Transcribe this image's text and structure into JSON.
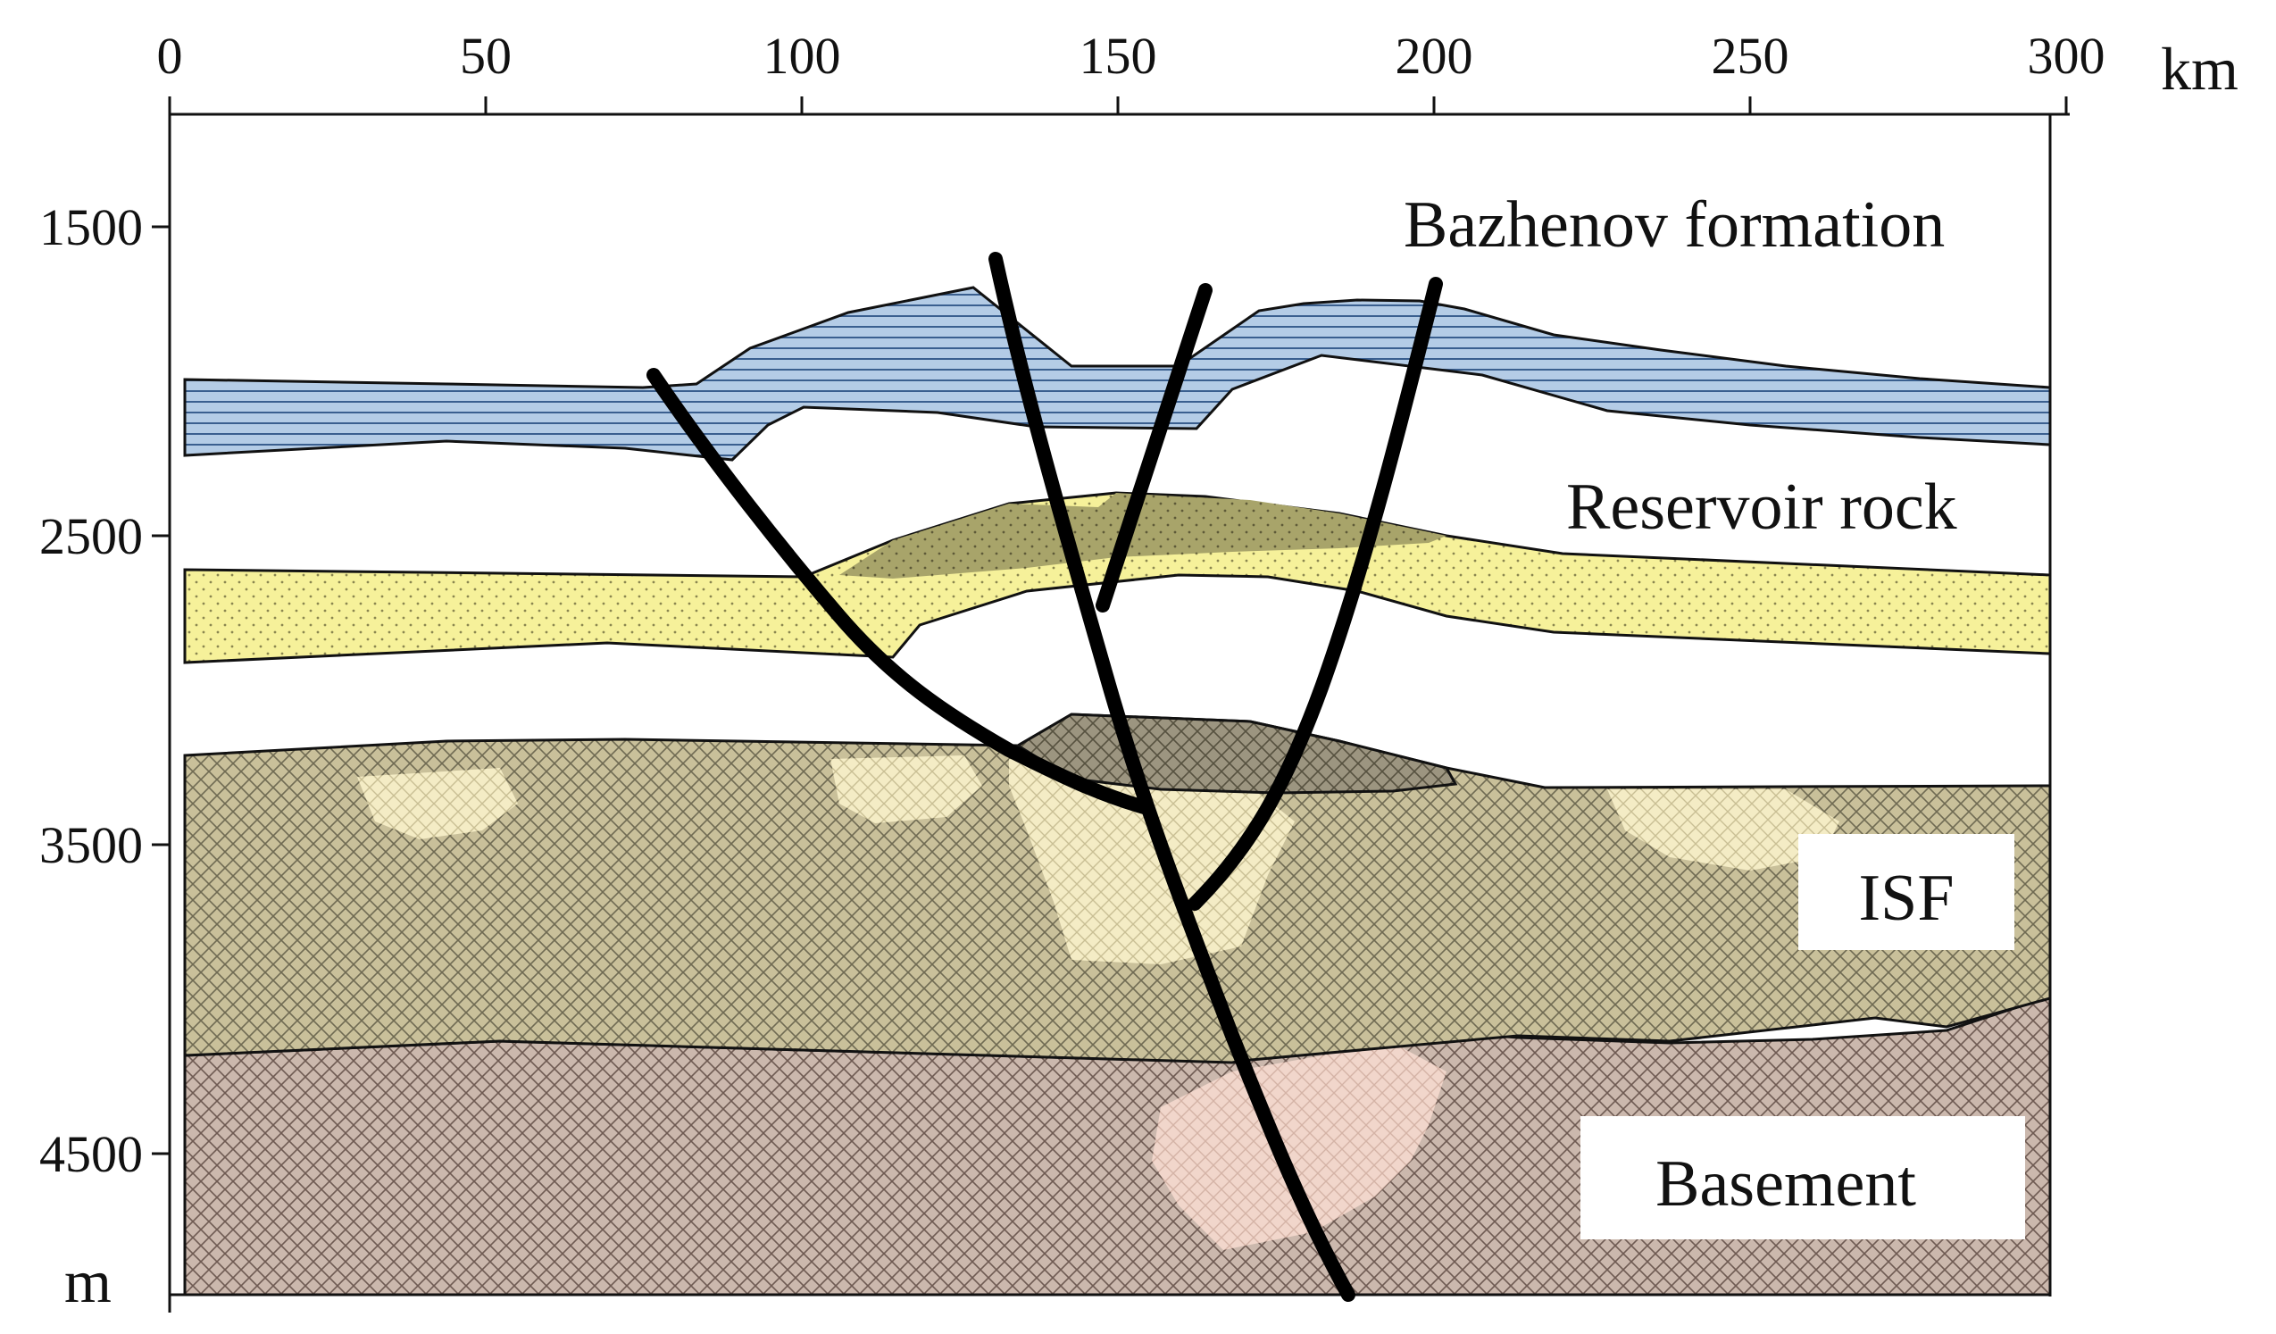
{
  "diagram": {
    "x_axis": {
      "ticks": [
        "0",
        "50",
        "100",
        "150",
        "200",
        "250",
        "300"
      ],
      "unit": "km"
    },
    "y_axis": {
      "ticks": [
        "1500",
        "2500",
        "3500",
        "4500"
      ],
      "unit": "m"
    },
    "layers": {
      "bazhenov": {
        "label": "Bazhenov formation",
        "color": "#b4cce6",
        "stripe_color": "#3a5f8f"
      },
      "reservoir": {
        "label": "Reservoir rock",
        "color": "#f6f19a",
        "dome_color": "#a8a46a"
      },
      "isf": {
        "label": "ISF",
        "color": "#c9c09a",
        "light_color": "#f4ecc5",
        "dark_color": "#9c9580"
      },
      "basement": {
        "label": "Basement",
        "color": "#cbb8ad",
        "light_color": "#f1d6cb"
      }
    },
    "fault_color": "#000000"
  }
}
